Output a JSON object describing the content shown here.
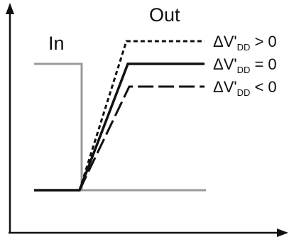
{
  "labels": {
    "in": "In",
    "out": "Out"
  },
  "legend": [
    {
      "id": "gt",
      "prefix": "ΔV'",
      "sub": "DD",
      "suffix": " > 0",
      "style": "short-dash"
    },
    {
      "id": "eq",
      "prefix": "ΔV'",
      "sub": "DD",
      "suffix": " = 0",
      "style": "solid"
    },
    {
      "id": "lt",
      "prefix": "ΔV'",
      "sub": "DD",
      "suffix": " < 0",
      "style": "long-dash"
    }
  ],
  "colors": {
    "input": "#9a9a9a",
    "output": "#111111",
    "axis": "#111111"
  }
}
